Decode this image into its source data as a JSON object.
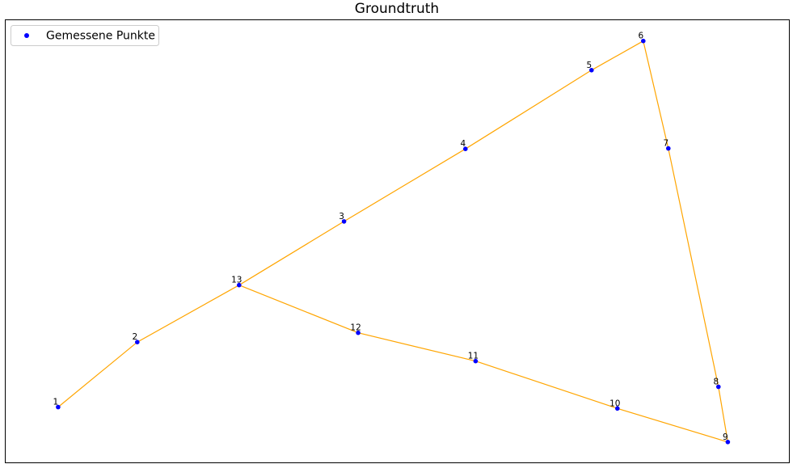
{
  "chart_data": {
    "type": "scatter",
    "title": "Groundtruth",
    "xlabel": "",
    "ylabel": "",
    "grid": false,
    "axes_ticks_visible": false,
    "legend": {
      "position": "top-left",
      "entries": [
        "Gemessene Punkte"
      ]
    },
    "colors": {
      "points": "#0000ff",
      "path": "#ffa500",
      "frame": "#000000",
      "background": "#ffffff"
    },
    "xlim": [
      0,
      1000
    ],
    "ylim": [
      0,
      1000
    ],
    "series": [
      {
        "name": "Gemessene Punkte",
        "points": [
          {
            "label": "1",
            "x": 67,
            "y": 125
          },
          {
            "label": "2",
            "x": 168,
            "y": 272
          },
          {
            "label": "3",
            "x": 432,
            "y": 545
          },
          {
            "label": "4",
            "x": 587,
            "y": 709
          },
          {
            "label": "5",
            "x": 748,
            "y": 887
          },
          {
            "label": "6",
            "x": 814,
            "y": 953
          },
          {
            "label": "7",
            "x": 846,
            "y": 710
          },
          {
            "label": "8",
            "x": 910,
            "y": 171
          },
          {
            "label": "9",
            "x": 922,
            "y": 46
          },
          {
            "label": "10",
            "x": 781,
            "y": 122
          },
          {
            "label": "11",
            "x": 600,
            "y": 229
          },
          {
            "label": "12",
            "x": 450,
            "y": 293
          },
          {
            "label": "13",
            "x": 298,
            "y": 401
          }
        ]
      }
    ],
    "path_order": [
      "1",
      "2",
      "13",
      "3",
      "4",
      "5",
      "6",
      "7",
      "8",
      "9",
      "10",
      "11",
      "12",
      "13"
    ]
  }
}
